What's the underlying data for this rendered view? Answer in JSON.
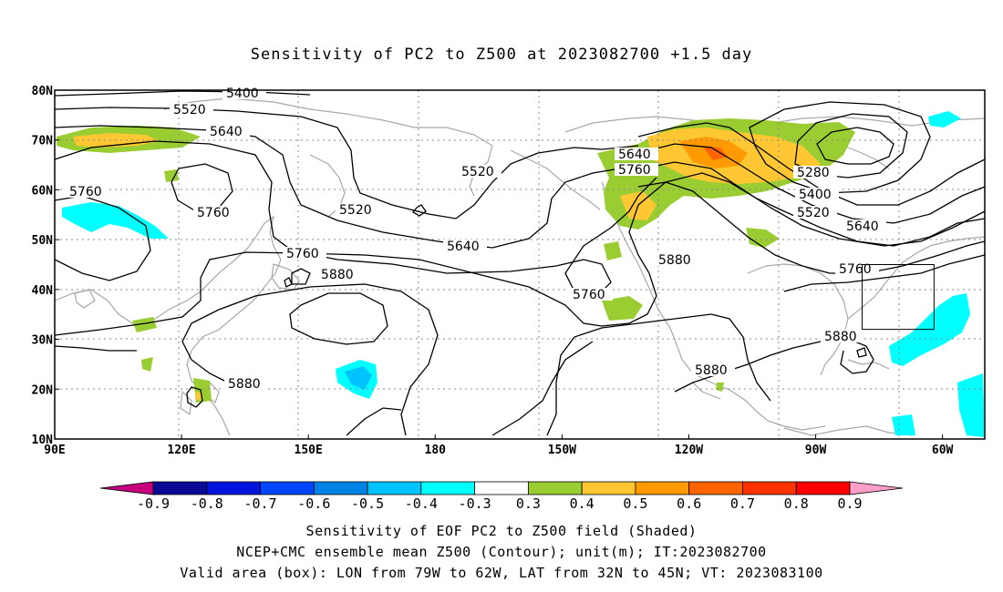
{
  "title": "Sensitivity of PC2 to Z500 at 2023082700 +1.5 day",
  "axes": {
    "lat_labels": [
      "80N",
      "70N",
      "60N",
      "50N",
      "40N",
      "30N",
      "20N",
      "10N"
    ],
    "lon_labels": [
      "90E",
      "120E",
      "150E",
      "180",
      "150W",
      "120W",
      "90W",
      "60W"
    ]
  },
  "contour_labels": [
    "5400",
    "5520",
    "5640",
    "5760",
    "5760",
    "5760",
    "5760",
    "5880",
    "5880",
    "5640",
    "5760",
    "5520",
    "5520",
    "5640",
    "5760",
    "5880",
    "5880",
    "5280",
    "5400",
    "5520",
    "5640",
    "5760",
    "5880"
  ],
  "valid_box": {
    "lon_range": [
      -79,
      -62
    ],
    "lat_range": [
      32,
      45
    ]
  },
  "colorbar": {
    "labels": [
      "-0.9",
      "-0.8",
      "-0.7",
      "-0.6",
      "-0.5",
      "-0.4",
      "-0.3",
      "0.3",
      "0.4",
      "0.5",
      "0.6",
      "0.7",
      "0.8",
      "0.9"
    ],
    "colors": [
      "#c6007d",
      "#0a0a96",
      "#0014dc",
      "#0046ff",
      "#0082e6",
      "#00c3ff",
      "#00ffff",
      "#ffffff",
      "#9acd32",
      "#ffc832",
      "#ff9b00",
      "#ff6400",
      "#ff3200",
      "#ff0000",
      "#ff9ec8"
    ]
  },
  "captions": [
    "Sensitivity of EOF PC2 to Z500 field (Shaded)",
    "NCEP+CMC ensemble mean Z500 (Contour); unit(m); IT:2023082700",
    "Valid area (box): LON from 79W to 62W, LAT from 32N to 45N; VT: 2023083100"
  ]
}
